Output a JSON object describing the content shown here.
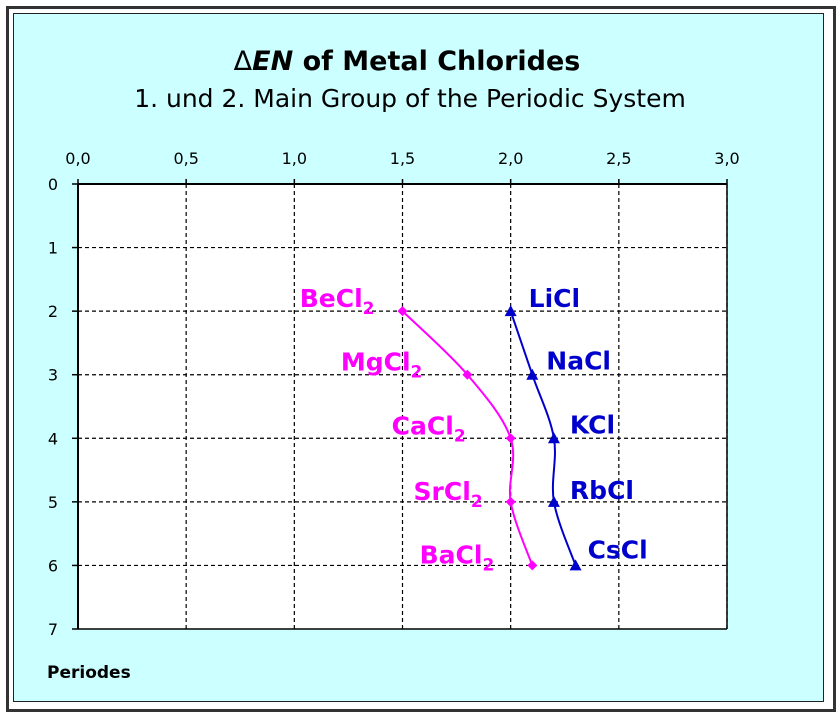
{
  "chart_data": {
    "type": "line",
    "title": {
      "delta": "Δ",
      "en": "EN",
      "rest": " of Metal Chlorides"
    },
    "subtitle": "1. und 2. Main Group of the Periodic System",
    "xlabel": "",
    "ylabel": "Periodes",
    "x_axis_position": "top",
    "y_axis_inverted": true,
    "xlim": [
      0,
      3
    ],
    "ylim": [
      0,
      7
    ],
    "x_ticks": [
      "0,0",
      "0,5",
      "1,0",
      "1,5",
      "2,0",
      "2,5",
      "3,0"
    ],
    "y_ticks": [
      "0",
      "1",
      "2",
      "3",
      "4",
      "5",
      "6",
      "7"
    ],
    "grid": true,
    "legend": "none",
    "series": [
      {
        "color": "#ff00ff",
        "marker": "diamond",
        "points": [
          {
            "x": 1.5,
            "y": 2,
            "label": "BeCl",
            "sub": "2"
          },
          {
            "x": 1.8,
            "y": 3,
            "label": "MgCl",
            "sub": "2"
          },
          {
            "x": 2.0,
            "y": 4,
            "label": "CaCl",
            "sub": "2"
          },
          {
            "x": 2.0,
            "y": 5,
            "label": "SrCl",
            "sub": "2"
          },
          {
            "x": 2.1,
            "y": 6,
            "label": "BaCl",
            "sub": "2"
          }
        ]
      },
      {
        "color": "#0000cc",
        "marker": "triangle",
        "points": [
          {
            "x": 2.0,
            "y": 2,
            "label": "LiCl",
            "sub": ""
          },
          {
            "x": 2.1,
            "y": 3,
            "label": "NaCl",
            "sub": ""
          },
          {
            "x": 2.2,
            "y": 4,
            "label": "KCl",
            "sub": ""
          },
          {
            "x": 2.2,
            "y": 5,
            "label": "RbCl",
            "sub": ""
          },
          {
            "x": 2.3,
            "y": 6,
            "label": "CsCl",
            "sub": ""
          }
        ]
      }
    ]
  }
}
